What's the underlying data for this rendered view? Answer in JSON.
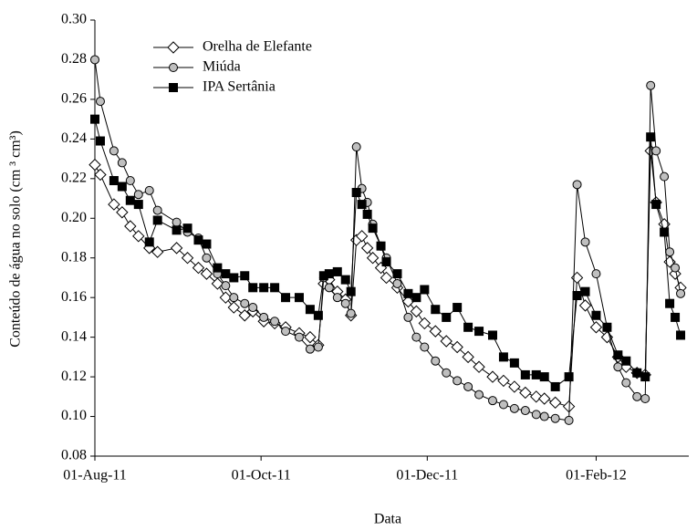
{
  "chart_data": {
    "type": "line",
    "x_label": "Data",
    "y_label": "Conteúdo de água no solo (cm ³ cm³)",
    "x": [
      "2011-08-01",
      "2011-08-03",
      "2011-08-08",
      "2011-08-11",
      "2011-08-14",
      "2011-08-17",
      "2011-08-21",
      "2011-08-24",
      "2011-08-31",
      "2011-09-04",
      "2011-09-08",
      "2011-09-11",
      "2011-09-15",
      "2011-09-18",
      "2011-09-21",
      "2011-09-25",
      "2011-09-28",
      "2011-10-02",
      "2011-10-06",
      "2011-10-10",
      "2011-10-15",
      "2011-10-19",
      "2011-10-22",
      "2011-10-24",
      "2011-10-26",
      "2011-10-29",
      "2011-11-01",
      "2011-11-03",
      "2011-11-05",
      "2011-11-07",
      "2011-11-09",
      "2011-11-11",
      "2011-11-14",
      "2011-11-16",
      "2011-11-20",
      "2011-11-24",
      "2011-11-27",
      "2011-11-30",
      "2011-12-04",
      "2011-12-08",
      "2011-12-12",
      "2011-12-16",
      "2011-12-20",
      "2011-12-25",
      "2011-12-29",
      "2012-01-02",
      "2012-01-06",
      "2012-01-10",
      "2012-01-13",
      "2012-01-17",
      "2012-01-22",
      "2012-01-25",
      "2012-01-28",
      "2012-02-01",
      "2012-02-05",
      "2012-02-09",
      "2012-02-12",
      "2012-02-16",
      "2012-02-19",
      "2012-02-21",
      "2012-02-23",
      "2012-02-26",
      "2012-02-28",
      "2012-03-01",
      "2012-03-03"
    ],
    "series": [
      {
        "name": "Orelha de Elefante",
        "color": "#ffffff",
        "marker": "diamond",
        "values": [
          0.227,
          0.222,
          0.207,
          0.203,
          0.196,
          0.191,
          0.185,
          0.183,
          0.185,
          0.18,
          0.175,
          0.172,
          0.167,
          0.16,
          0.155,
          0.151,
          0.153,
          0.148,
          0.147,
          0.145,
          0.142,
          0.14,
          0.136,
          0.167,
          0.169,
          0.163,
          0.159,
          0.151,
          0.189,
          0.191,
          0.185,
          0.18,
          0.175,
          0.17,
          0.165,
          0.158,
          0.153,
          0.147,
          0.143,
          0.138,
          0.135,
          0.13,
          0.125,
          0.12,
          0.118,
          0.115,
          0.112,
          0.11,
          0.109,
          0.107,
          0.105,
          0.17,
          0.156,
          0.145,
          0.14,
          0.13,
          0.125,
          0.122,
          0.121,
          0.234,
          0.208,
          0.197,
          0.178,
          0.172,
          0.165
        ]
      },
      {
        "name": "Miúda",
        "color": "#bfbfbf",
        "marker": "circle",
        "values": [
          0.28,
          0.259,
          0.234,
          0.228,
          0.219,
          0.212,
          0.214,
          0.204,
          0.198,
          0.193,
          0.19,
          0.18,
          0.172,
          0.166,
          0.16,
          0.157,
          0.155,
          0.15,
          0.148,
          0.143,
          0.14,
          0.134,
          0.135,
          0.17,
          0.165,
          0.16,
          0.157,
          0.152,
          0.236,
          0.215,
          0.208,
          0.197,
          0.186,
          0.18,
          0.167,
          0.15,
          0.14,
          0.135,
          0.128,
          0.122,
          0.118,
          0.115,
          0.111,
          0.108,
          0.106,
          0.104,
          0.103,
          0.101,
          0.1,
          0.099,
          0.098,
          0.217,
          0.188,
          0.172,
          0.145,
          0.125,
          0.117,
          0.11,
          0.109,
          0.267,
          0.234,
          0.221,
          0.183,
          0.175,
          0.162
        ]
      },
      {
        "name": "IPA Sertânia",
        "color": "#000000",
        "marker": "square",
        "values": [
          0.25,
          0.239,
          0.219,
          0.216,
          0.209,
          0.207,
          0.188,
          0.199,
          0.194,
          0.195,
          0.189,
          0.187,
          0.175,
          0.172,
          0.17,
          0.171,
          0.165,
          0.165,
          0.165,
          0.16,
          0.16,
          0.154,
          0.151,
          0.171,
          0.172,
          0.173,
          0.169,
          0.163,
          0.213,
          0.207,
          0.202,
          0.195,
          0.186,
          0.178,
          0.172,
          0.162,
          0.16,
          0.164,
          0.154,
          0.15,
          0.155,
          0.145,
          0.143,
          0.141,
          0.13,
          0.127,
          0.121,
          0.121,
          0.12,
          0.115,
          0.12,
          0.161,
          0.163,
          0.151,
          0.145,
          0.131,
          0.128,
          0.122,
          0.12,
          0.241,
          0.207,
          0.193,
          0.157,
          0.15,
          0.141
        ]
      }
    ],
    "xlim": [
      "2011-08-01",
      "2012-03-06"
    ],
    "xticks": [
      {
        "value": "2011-08-01",
        "label": "01-Aug-11"
      },
      {
        "value": "2011-10-01",
        "label": "01-Oct-11"
      },
      {
        "value": "2011-12-01",
        "label": "01-Dec-11"
      },
      {
        "value": "2012-02-01",
        "label": "01-Feb-12"
      }
    ],
    "ylim": [
      0.08,
      0.3
    ],
    "yticks": [
      {
        "value": 0.08,
        "label": "0.08"
      },
      {
        "value": 0.1,
        "label": "0.10"
      },
      {
        "value": 0.12,
        "label": "0.12"
      },
      {
        "value": 0.14,
        "label": "0.14"
      },
      {
        "value": 0.16,
        "label": "0.16"
      },
      {
        "value": 0.18,
        "label": "0.18"
      },
      {
        "value": 0.2,
        "label": "0.20"
      },
      {
        "value": 0.22,
        "label": "0.22"
      },
      {
        "value": 0.24,
        "label": "0.24"
      },
      {
        "value": 0.26,
        "label": "0.26"
      },
      {
        "value": 0.28,
        "label": "0.28"
      },
      {
        "value": 0.3,
        "label": "0.30"
      }
    ],
    "legend": "upper left",
    "grid": false
  }
}
